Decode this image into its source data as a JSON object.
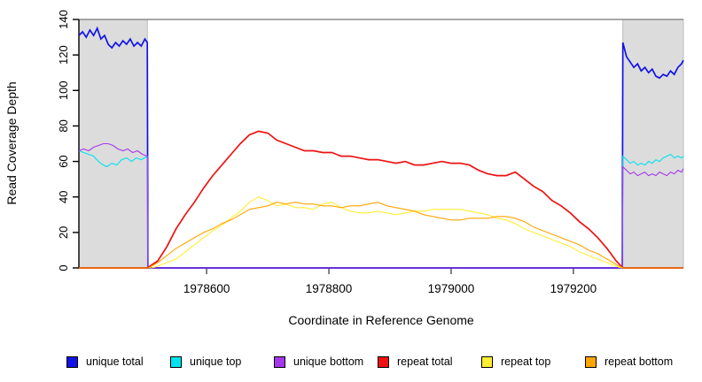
{
  "chart_data": {
    "type": "line",
    "title": "",
    "xlabel": "Coordinate in Reference Genome",
    "ylabel": "Read Coverage Depth",
    "xlim": [
      1978391,
      1979380
    ],
    "ylim": [
      0,
      140
    ],
    "xticks": [
      1978600,
      1978800,
      1979000,
      1979200
    ],
    "yticks": [
      0,
      20,
      40,
      60,
      80,
      100,
      120,
      140
    ],
    "grid": false,
    "legend_position": "bottom",
    "plot_background": "#ffffff",
    "shaded_region_color": "#dcdcdc",
    "shaded_region_border": "#bdbdbd",
    "box_line_color": "#8c8c8c",
    "shaded_regions": [
      [
        1978391,
        1978503
      ],
      [
        1979281,
        1979380
      ]
    ],
    "series": [
      {
        "name": "unique total",
        "color": "#1212e8",
        "width": 1.7,
        "points": [
          [
            1978391,
            131
          ],
          [
            1978397,
            133
          ],
          [
            1978403,
            130
          ],
          [
            1978409,
            134
          ],
          [
            1978415,
            131
          ],
          [
            1978421,
            135
          ],
          [
            1978427,
            129
          ],
          [
            1978433,
            131
          ],
          [
            1978439,
            126
          ],
          [
            1978445,
            124
          ],
          [
            1978451,
            127
          ],
          [
            1978457,
            125
          ],
          [
            1978463,
            128
          ],
          [
            1978469,
            126
          ],
          [
            1978475,
            129
          ],
          [
            1978481,
            125
          ],
          [
            1978487,
            127
          ],
          [
            1978493,
            125
          ],
          [
            1978499,
            129
          ],
          [
            1978503,
            127
          ],
          [
            1978504,
            0
          ],
          [
            1979280,
            0
          ],
          [
            1979281,
            127
          ],
          [
            1979287,
            119
          ],
          [
            1979293,
            116
          ],
          [
            1979299,
            113
          ],
          [
            1979305,
            115
          ],
          [
            1979311,
            111
          ],
          [
            1979317,
            113
          ],
          [
            1979323,
            110
          ],
          [
            1979329,
            112
          ],
          [
            1979335,
            108
          ],
          [
            1979341,
            107
          ],
          [
            1979347,
            109
          ],
          [
            1979353,
            108
          ],
          [
            1979359,
            111
          ],
          [
            1979365,
            109
          ],
          [
            1979371,
            113
          ],
          [
            1979377,
            115
          ],
          [
            1979380,
            117
          ]
        ]
      },
      {
        "name": "unique top",
        "color": "#00e2ee",
        "width": 1.1,
        "points": [
          [
            1978391,
            66
          ],
          [
            1978399,
            65
          ],
          [
            1978407,
            64
          ],
          [
            1978415,
            63
          ],
          [
            1978423,
            60
          ],
          [
            1978431,
            58
          ],
          [
            1978437,
            57
          ],
          [
            1978445,
            59
          ],
          [
            1978453,
            58
          ],
          [
            1978461,
            61
          ],
          [
            1978469,
            62
          ],
          [
            1978477,
            60
          ],
          [
            1978485,
            62
          ],
          [
            1978493,
            61
          ],
          [
            1978503,
            63
          ],
          [
            1978504,
            0
          ],
          [
            1979280,
            0
          ],
          [
            1979281,
            63
          ],
          [
            1979287,
            61
          ],
          [
            1979293,
            59
          ],
          [
            1979299,
            60
          ],
          [
            1979305,
            58
          ],
          [
            1979311,
            59
          ],
          [
            1979317,
            58
          ],
          [
            1979323,
            60
          ],
          [
            1979329,
            59
          ],
          [
            1979335,
            61
          ],
          [
            1979341,
            60
          ],
          [
            1979347,
            62
          ],
          [
            1979353,
            63
          ],
          [
            1979359,
            64
          ],
          [
            1979365,
            62
          ],
          [
            1979371,
            63
          ],
          [
            1979377,
            62
          ],
          [
            1979380,
            63
          ]
        ]
      },
      {
        "name": "unique bottom",
        "color": "#a438ec",
        "width": 1.1,
        "points": [
          [
            1978391,
            66
          ],
          [
            1978399,
            67
          ],
          [
            1978407,
            66
          ],
          [
            1978415,
            68
          ],
          [
            1978423,
            69
          ],
          [
            1978431,
            70
          ],
          [
            1978439,
            70
          ],
          [
            1978447,
            69
          ],
          [
            1978455,
            67
          ],
          [
            1978463,
            66
          ],
          [
            1978471,
            67
          ],
          [
            1978479,
            65
          ],
          [
            1978487,
            66
          ],
          [
            1978495,
            64
          ],
          [
            1978503,
            63
          ],
          [
            1978504,
            0
          ],
          [
            1979280,
            0
          ],
          [
            1979281,
            57
          ],
          [
            1979287,
            55
          ],
          [
            1979293,
            53
          ],
          [
            1979299,
            54
          ],
          [
            1979305,
            52
          ],
          [
            1979311,
            53
          ],
          [
            1979317,
            54
          ],
          [
            1979323,
            52
          ],
          [
            1979329,
            53
          ],
          [
            1979335,
            52
          ],
          [
            1979341,
            54
          ],
          [
            1979347,
            53
          ],
          [
            1979353,
            52
          ],
          [
            1979359,
            54
          ],
          [
            1979365,
            53
          ],
          [
            1979371,
            55
          ],
          [
            1979377,
            54
          ],
          [
            1979380,
            56
          ]
        ]
      },
      {
        "name": "repeat total",
        "color": "#ee1111",
        "width": 1.7,
        "points": [
          [
            1978391,
            0
          ],
          [
            1978503,
            0
          ],
          [
            1978520,
            4
          ],
          [
            1978535,
            12
          ],
          [
            1978550,
            22
          ],
          [
            1978565,
            30
          ],
          [
            1978580,
            37
          ],
          [
            1978595,
            45
          ],
          [
            1978610,
            52
          ],
          [
            1978625,
            58
          ],
          [
            1978640,
            64
          ],
          [
            1978655,
            70
          ],
          [
            1978670,
            75
          ],
          [
            1978685,
            77
          ],
          [
            1978700,
            76
          ],
          [
            1978715,
            72
          ],
          [
            1978730,
            70
          ],
          [
            1978745,
            68
          ],
          [
            1978760,
            66
          ],
          [
            1978775,
            66
          ],
          [
            1978790,
            65
          ],
          [
            1978805,
            65
          ],
          [
            1978820,
            63
          ],
          [
            1978835,
            63
          ],
          [
            1978850,
            62
          ],
          [
            1978865,
            61
          ],
          [
            1978880,
            61
          ],
          [
            1978895,
            60
          ],
          [
            1978910,
            59
          ],
          [
            1978925,
            60
          ],
          [
            1978940,
            58
          ],
          [
            1978955,
            58
          ],
          [
            1978970,
            59
          ],
          [
            1978985,
            60
          ],
          [
            1979000,
            59
          ],
          [
            1979015,
            59
          ],
          [
            1979030,
            58
          ],
          [
            1979045,
            55
          ],
          [
            1979060,
            53
          ],
          [
            1979075,
            52
          ],
          [
            1979090,
            52
          ],
          [
            1979105,
            54
          ],
          [
            1979120,
            50
          ],
          [
            1979135,
            46
          ],
          [
            1979150,
            43
          ],
          [
            1979165,
            38
          ],
          [
            1979180,
            35
          ],
          [
            1979195,
            31
          ],
          [
            1979210,
            26
          ],
          [
            1979225,
            22
          ],
          [
            1979240,
            17
          ],
          [
            1979255,
            11
          ],
          [
            1979270,
            4
          ],
          [
            1979281,
            0
          ],
          [
            1979380,
            0
          ]
        ]
      },
      {
        "name": "repeat top",
        "color": "#ffee33",
        "width": 1.1,
        "points": [
          [
            1978391,
            0
          ],
          [
            1978510,
            0
          ],
          [
            1978520,
            1
          ],
          [
            1978535,
            3
          ],
          [
            1978550,
            5
          ],
          [
            1978565,
            9
          ],
          [
            1978580,
            13
          ],
          [
            1978595,
            17
          ],
          [
            1978610,
            21
          ],
          [
            1978625,
            24
          ],
          [
            1978640,
            28
          ],
          [
            1978655,
            32
          ],
          [
            1978670,
            37
          ],
          [
            1978685,
            40
          ],
          [
            1978700,
            38
          ],
          [
            1978715,
            35
          ],
          [
            1978730,
            36
          ],
          [
            1978745,
            34
          ],
          [
            1978760,
            34
          ],
          [
            1978775,
            33
          ],
          [
            1978790,
            36
          ],
          [
            1978805,
            37
          ],
          [
            1978820,
            34
          ],
          [
            1978835,
            32
          ],
          [
            1978850,
            31
          ],
          [
            1978865,
            31
          ],
          [
            1978880,
            32
          ],
          [
            1978895,
            31
          ],
          [
            1978910,
            30
          ],
          [
            1978925,
            31
          ],
          [
            1978940,
            32
          ],
          [
            1978955,
            32
          ],
          [
            1978970,
            33
          ],
          [
            1978985,
            33
          ],
          [
            1979000,
            33
          ],
          [
            1979015,
            33
          ],
          [
            1979030,
            32
          ],
          [
            1979045,
            31
          ],
          [
            1979060,
            30
          ],
          [
            1979075,
            28
          ],
          [
            1979090,
            27
          ],
          [
            1979105,
            25
          ],
          [
            1979120,
            22
          ],
          [
            1979135,
            20
          ],
          [
            1979150,
            18
          ],
          [
            1979165,
            16
          ],
          [
            1979180,
            14
          ],
          [
            1979195,
            12
          ],
          [
            1979210,
            9
          ],
          [
            1979225,
            7
          ],
          [
            1979240,
            5
          ],
          [
            1979255,
            3
          ],
          [
            1979270,
            1
          ],
          [
            1979278,
            0
          ],
          [
            1979380,
            0
          ]
        ]
      },
      {
        "name": "repeat bottom",
        "color": "#ffa500",
        "width": 1.1,
        "points": [
          [
            1978391,
            0
          ],
          [
            1978505,
            0
          ],
          [
            1978520,
            3
          ],
          [
            1978535,
            7
          ],
          [
            1978550,
            11
          ],
          [
            1978565,
            14
          ],
          [
            1978580,
            17
          ],
          [
            1978595,
            20
          ],
          [
            1978610,
            22
          ],
          [
            1978625,
            25
          ],
          [
            1978640,
            27
          ],
          [
            1978655,
            30
          ],
          [
            1978670,
            33
          ],
          [
            1978685,
            34
          ],
          [
            1978700,
            35
          ],
          [
            1978715,
            37
          ],
          [
            1978730,
            36
          ],
          [
            1978745,
            37
          ],
          [
            1978760,
            36
          ],
          [
            1978775,
            36
          ],
          [
            1978790,
            35
          ],
          [
            1978805,
            35
          ],
          [
            1978820,
            34
          ],
          [
            1978835,
            35
          ],
          [
            1978850,
            35
          ],
          [
            1978865,
            36
          ],
          [
            1978880,
            37
          ],
          [
            1978895,
            35
          ],
          [
            1978910,
            34
          ],
          [
            1978925,
            33
          ],
          [
            1978940,
            32
          ],
          [
            1978955,
            30
          ],
          [
            1978970,
            29
          ],
          [
            1978985,
            28
          ],
          [
            1979000,
            27
          ],
          [
            1979015,
            27
          ],
          [
            1979030,
            28
          ],
          [
            1979045,
            28
          ],
          [
            1979060,
            28
          ],
          [
            1979075,
            29
          ],
          [
            1979090,
            29
          ],
          [
            1979105,
            28
          ],
          [
            1979120,
            26
          ],
          [
            1979135,
            23
          ],
          [
            1979150,
            21
          ],
          [
            1979165,
            19
          ],
          [
            1979180,
            17
          ],
          [
            1979195,
            15
          ],
          [
            1979210,
            13
          ],
          [
            1979225,
            10
          ],
          [
            1979240,
            8
          ],
          [
            1979255,
            5
          ],
          [
            1979270,
            2
          ],
          [
            1979281,
            0
          ],
          [
            1979380,
            0
          ]
        ]
      }
    ]
  }
}
